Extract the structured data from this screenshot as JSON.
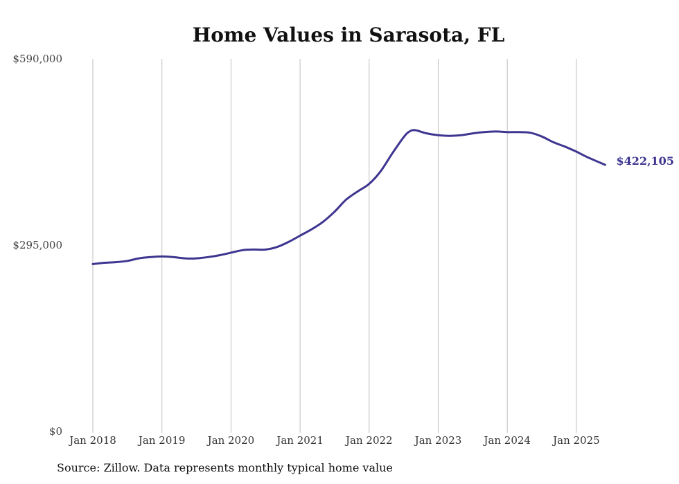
{
  "source_note": "Source: Zillow. Data represents monthly typical home value",
  "colors": {
    "line": "#3d3590",
    "grid": "#bfbfbf"
  },
  "chart_data": {
    "type": "line",
    "title": "Home Values in Sarasota, FL",
    "xlabel": "",
    "ylabel": "",
    "ylim": [
      0,
      590000
    ],
    "yticks": [
      0,
      295000,
      590000
    ],
    "ytick_labels": [
      "$0",
      "$295,000",
      "$590,000"
    ],
    "x_ticks": [
      "Jan 2018",
      "Jan 2019",
      "Jan 2020",
      "Jan 2021",
      "Jan 2022",
      "Jan 2023",
      "Jan 2024",
      "Jan 2025"
    ],
    "xlim": [
      "2018-01",
      "2025-06"
    ],
    "grid": "vertical",
    "end_label": "$422,105",
    "series": [
      {
        "x": [
          "2018-01",
          "2018-03",
          "2018-05",
          "2018-07",
          "2018-09",
          "2018-11",
          "2019-01",
          "2019-03",
          "2019-05",
          "2019-07",
          "2019-09",
          "2019-11",
          "2020-01",
          "2020-03",
          "2020-05",
          "2020-07",
          "2020-09",
          "2020-11",
          "2021-01",
          "2021-03",
          "2021-05",
          "2021-07",
          "2021-09",
          "2021-11",
          "2022-01",
          "2022-03",
          "2022-05",
          "2022-07",
          "2022-08",
          "2022-09",
          "2022-11",
          "2023-01",
          "2023-03",
          "2023-05",
          "2023-07",
          "2023-09",
          "2023-11",
          "2024-01",
          "2024-03",
          "2024-05",
          "2024-07",
          "2024-09",
          "2024-11",
          "2025-01",
          "2025-03",
          "2025-06"
        ],
        "y": [
          265000,
          267000,
          268000,
          270000,
          274000,
          276000,
          277000,
          276000,
          274000,
          274000,
          276000,
          279000,
          283000,
          287000,
          288000,
          288000,
          292000,
          300000,
          310000,
          320000,
          332000,
          348000,
          367000,
          380000,
          392000,
          412000,
          440000,
          466000,
          475000,
          477000,
          472000,
          469000,
          468000,
          469000,
          472000,
          474000,
          475000,
          474000,
          474000,
          473000,
          467000,
          458000,
          451000,
          443000,
          434000,
          422105
        ]
      }
    ]
  }
}
